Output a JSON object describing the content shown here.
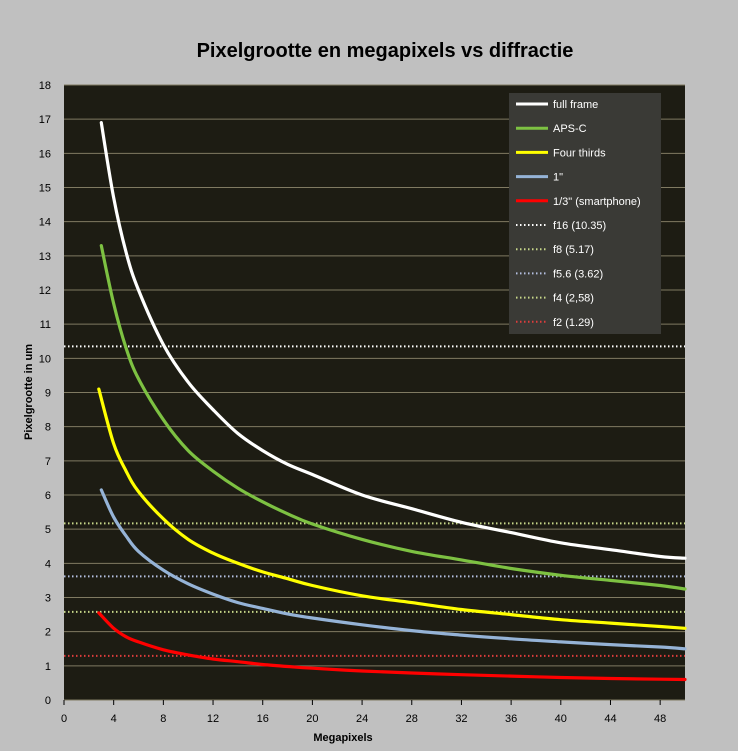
{
  "chart_data": {
    "type": "line",
    "title": "Pixelgrootte  en  megapixels vs diffractie",
    "xlabel": "Megapixels",
    "ylabel": "Pixelgrootte in um",
    "xlim": [
      0,
      50
    ],
    "ylim": [
      0,
      18
    ],
    "xticks": [
      0,
      4,
      8,
      12,
      16,
      20,
      24,
      28,
      32,
      36,
      40,
      44,
      48
    ],
    "yticks": [
      0,
      1,
      2,
      3,
      4,
      5,
      6,
      7,
      8,
      9,
      10,
      11,
      12,
      13,
      14,
      15,
      16,
      17,
      18
    ],
    "grid": "horizontal",
    "legend_position": "top-right",
    "series": [
      {
        "name": "full frame",
        "color": "#ffffff",
        "style": "solid",
        "x": [
          3,
          4,
          5,
          6,
          8,
          10,
          12,
          14,
          16,
          18,
          20,
          24,
          28,
          32,
          36,
          40,
          44,
          48,
          50
        ],
        "y": [
          16.9,
          14.7,
          13.1,
          12.0,
          10.4,
          9.3,
          8.5,
          7.8,
          7.3,
          6.9,
          6.6,
          6.0,
          5.6,
          5.2,
          4.9,
          4.6,
          4.4,
          4.2,
          4.15
        ]
      },
      {
        "name": "APS-C",
        "color": "#7dc142",
        "style": "solid",
        "x": [
          3,
          4,
          5,
          6,
          8,
          10,
          12,
          14,
          16,
          18,
          20,
          24,
          28,
          32,
          36,
          40,
          44,
          48,
          50
        ],
        "y": [
          13.3,
          11.6,
          10.3,
          9.4,
          8.2,
          7.3,
          6.7,
          6.2,
          5.8,
          5.45,
          5.15,
          4.7,
          4.35,
          4.1,
          3.85,
          3.65,
          3.5,
          3.35,
          3.25
        ]
      },
      {
        "name": "Four thirds",
        "color": "#ffff00",
        "style": "solid",
        "x": [
          2.8,
          4,
          5,
          6,
          8,
          10,
          12,
          14,
          16,
          18,
          20,
          24,
          28,
          32,
          36,
          40,
          44,
          48,
          50
        ],
        "y": [
          9.1,
          7.5,
          6.7,
          6.1,
          5.3,
          4.7,
          4.3,
          4.0,
          3.75,
          3.55,
          3.35,
          3.05,
          2.85,
          2.65,
          2.5,
          2.35,
          2.25,
          2.15,
          2.1
        ]
      },
      {
        "name": "1\"",
        "color": "#95b3d7",
        "style": "solid",
        "x": [
          3,
          4,
          5,
          6,
          8,
          10,
          12,
          14,
          16,
          18,
          20,
          24,
          28,
          32,
          36,
          40,
          44,
          48,
          50
        ],
        "y": [
          6.15,
          5.35,
          4.8,
          4.35,
          3.8,
          3.4,
          3.1,
          2.85,
          2.68,
          2.52,
          2.4,
          2.2,
          2.03,
          1.9,
          1.79,
          1.7,
          1.62,
          1.55,
          1.5
        ]
      },
      {
        "name": "1/3\" (smartphone)",
        "color": "#ff0000",
        "style": "solid",
        "x": [
          2.8,
          4,
          5,
          6,
          8,
          10,
          12,
          14,
          16,
          18,
          20,
          24,
          28,
          32,
          36,
          40,
          44,
          48,
          50
        ],
        "y": [
          2.55,
          2.1,
          1.85,
          1.7,
          1.47,
          1.32,
          1.2,
          1.12,
          1.04,
          0.98,
          0.93,
          0.85,
          0.79,
          0.74,
          0.7,
          0.66,
          0.63,
          0.61,
          0.6
        ]
      },
      {
        "name": "f16 (10.35)",
        "color": "#ffffff",
        "style": "dotted",
        "x": [
          0,
          50
        ],
        "y": [
          10.35,
          10.35
        ]
      },
      {
        "name": "f8 (5.17)",
        "color": "#c8d88a",
        "style": "dotted",
        "x": [
          0,
          50
        ],
        "y": [
          5.17,
          5.17
        ]
      },
      {
        "name": "f5.6 (3.62)",
        "color": "#b4bfe0",
        "style": "dotted",
        "x": [
          0,
          50
        ],
        "y": [
          3.62,
          3.62
        ]
      },
      {
        "name": "f4 (2,58)",
        "color": "#c8d88a",
        "style": "dotted",
        "x": [
          0,
          50
        ],
        "y": [
          2.58,
          2.58
        ]
      },
      {
        "name": "f2 (1.29)",
        "color": "#e03c3c",
        "style": "dotted",
        "x": [
          0,
          50
        ],
        "y": [
          1.29,
          1.29
        ]
      }
    ],
    "colors": {
      "plot_background": "#1d1c13",
      "page_background": "#c0c0c0",
      "legend_background": "#3a3a36",
      "grid": "#807a62"
    }
  }
}
